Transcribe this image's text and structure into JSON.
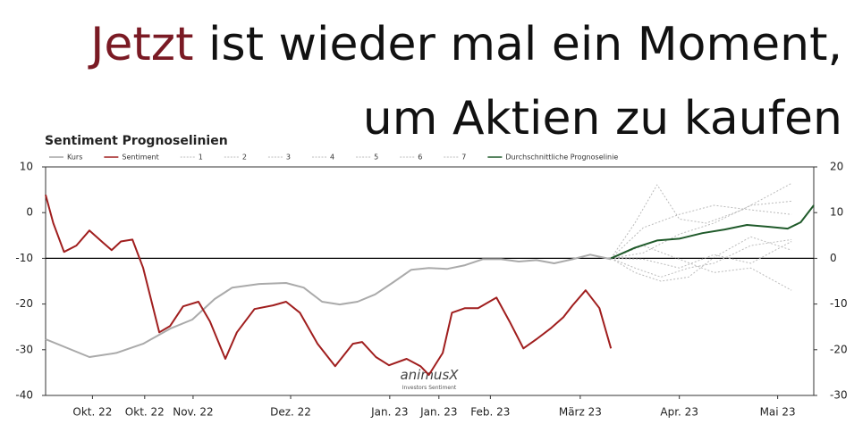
{
  "headline": {
    "highlight": "Jetzt",
    "line1": "ist wieder mal ein Moment,",
    "line2": "um Aktien zu kaufen"
  },
  "chart_data": {
    "type": "line",
    "title": "Sentiment Prognoselinien",
    "watermark": "animusX",
    "watermark_sub": "Investors Sentiment",
    "xlim": [
      0,
      100
    ],
    "xticks": [
      {
        "value": 6.1,
        "label": "Okt. 22"
      },
      {
        "value": 12.9,
        "label": "Okt. 22"
      },
      {
        "value": 19.2,
        "label": "Nov. 22"
      },
      {
        "value": 31.9,
        "label": "Dez. 22"
      },
      {
        "value": 44.8,
        "label": "Jan. 23"
      },
      {
        "value": 51.2,
        "label": "Jan. 23"
      },
      {
        "value": 57.9,
        "label": "Feb. 23"
      },
      {
        "value": 69.6,
        "label": "März 23"
      },
      {
        "value": 82.5,
        "label": "Apr. 23"
      },
      {
        "value": 95.3,
        "label": "Mai 23"
      }
    ],
    "ylim": [
      -40,
      10
    ],
    "yticks": [
      10,
      0,
      -10,
      -20,
      -30,
      -40
    ],
    "y2lim": [
      -30,
      20
    ],
    "y2ticks": [
      20,
      10,
      0,
      -10,
      -20,
      -30
    ],
    "hline": -10,
    "series": [
      {
        "name": "Kurs",
        "color": "#aaaaaa",
        "style": "solid",
        "x": [
          0,
          5.7,
          9.2,
          12.7,
          16.2,
          19.1,
          22,
          24.3,
          27.8,
          31.3,
          33.6,
          36,
          38.3,
          40.6,
          42.9,
          45.3,
          47.6,
          49.9,
          52.3,
          54.6,
          56.9,
          59.3,
          61.6,
          63.9,
          66.2,
          68.6,
          70.9,
          73.6
        ],
        "values": [
          -27.7,
          -31.6,
          -30.7,
          -28.7,
          -25.4,
          -23.4,
          -18.9,
          -16.4,
          -15.6,
          -15.4,
          -16.4,
          -19.5,
          -20.1,
          -19.5,
          -17.9,
          -15.2,
          -12.5,
          -12.1,
          -12.3,
          -11.5,
          -10.2,
          -10.2,
          -10.7,
          -10.4,
          -11.1,
          -10.2,
          -9.2,
          -10.2
        ]
      },
      {
        "name": "Sentiment",
        "color": "#a01e1e",
        "style": "solid",
        "x": [
          0,
          1,
          2.4,
          4,
          5.7,
          7.5,
          8.6,
          9.8,
          11.3,
          12.7,
          14.8,
          16.2,
          17.9,
          19.9,
          21.4,
          23.4,
          24.9,
          27.2,
          29.6,
          31.3,
          33.1,
          35.4,
          37.7,
          40,
          41.2,
          43,
          44.7,
          47,
          48.8,
          49.9,
          51.7,
          52.9,
          54.6,
          56.3,
          58.7,
          60.4,
          62.2,
          63.9,
          65.7,
          67.4,
          68.6,
          70.3,
          72.1,
          73.6
        ],
        "values": [
          3.9,
          -2.3,
          -8.6,
          -7.2,
          -3.9,
          -6.6,
          -8.2,
          -6.3,
          -5.9,
          -12.1,
          -26.2,
          -24.8,
          -20.5,
          -19.5,
          -23.8,
          -32,
          -26.2,
          -21.1,
          -20.3,
          -19.5,
          -21.9,
          -28.7,
          -33.6,
          -28.7,
          -28.3,
          -31.6,
          -33.4,
          -32,
          -33.6,
          -35.5,
          -30.7,
          -21.9,
          -20.9,
          -20.9,
          -18.6,
          -23.8,
          -29.7,
          -27.7,
          -25.4,
          -22.9,
          -20.3,
          -17,
          -20.9,
          -29.7
        ]
      },
      {
        "name": "1",
        "color": "#bbbbbb",
        "style": "dotted",
        "x": [
          73.6,
          76.7,
          79.6,
          82.5,
          86,
          90.7,
          97.1
        ],
        "values": [
          -10,
          -2.3,
          6.1,
          -1.4,
          -2.3,
          0.6,
          6.4
        ]
      },
      {
        "name": "2",
        "color": "#bbbbbb",
        "style": "dotted",
        "x": [
          73.6,
          77.8,
          82.5,
          87,
          91.8,
          97.1
        ],
        "values": [
          -10,
          -3.3,
          -0.4,
          1.6,
          0.6,
          -0.4
        ]
      },
      {
        "name": "3",
        "color": "#bbbbbb",
        "style": "dotted",
        "x": [
          73.6,
          76.7,
          80.1,
          83.7,
          87,
          91.8,
          97.1
        ],
        "values": [
          -10,
          -12.1,
          -14.1,
          -12.1,
          -11.1,
          -7.2,
          -5.9
        ]
      },
      {
        "name": "4",
        "color": "#bbbbbb",
        "style": "dotted",
        "x": [
          73.6,
          77.8,
          82.5,
          87,
          91.8,
          97.1
        ],
        "values": [
          -10,
          -7.2,
          -10.2,
          -13.1,
          -12.1,
          -17
        ]
      },
      {
        "name": "5",
        "color": "#bbbbbb",
        "style": "dotted",
        "x": [
          73.6,
          77.8,
          82.5,
          87,
          91.8,
          97.1
        ],
        "values": [
          -10,
          -10.2,
          -12.1,
          -9.2,
          -11.1,
          -6.3
        ]
      },
      {
        "name": "6",
        "color": "#bbbbbb",
        "style": "dotted",
        "x": [
          73.6,
          77.8,
          82.5,
          87,
          91.8,
          97.1
        ],
        "values": [
          -10,
          -8.8,
          -4.7,
          -2.3,
          1.6,
          2.5
        ]
      },
      {
        "name": "7",
        "color": "#bbbbbb",
        "style": "dotted",
        "x": [
          73.6,
          76.7,
          80.1,
          83.7,
          87,
          91.8,
          97.1
        ],
        "values": [
          -10,
          -13.1,
          -15,
          -14.1,
          -9.8,
          -5.3,
          -8.2
        ]
      },
      {
        "name": "Durchschnittliche Prognoselinie",
        "color": "#1f5a2a",
        "style": "solid",
        "x": [
          73.6,
          76.7,
          79.6,
          82.5,
          85.5,
          88.4,
          91.3,
          94.2,
          96.6,
          98.3,
          100
        ],
        "values": [
          -10,
          -7.7,
          -6.1,
          -5.7,
          -4.5,
          -3.7,
          -2.7,
          -3.1,
          -3.5,
          -2.1,
          1.6
        ]
      }
    ]
  }
}
